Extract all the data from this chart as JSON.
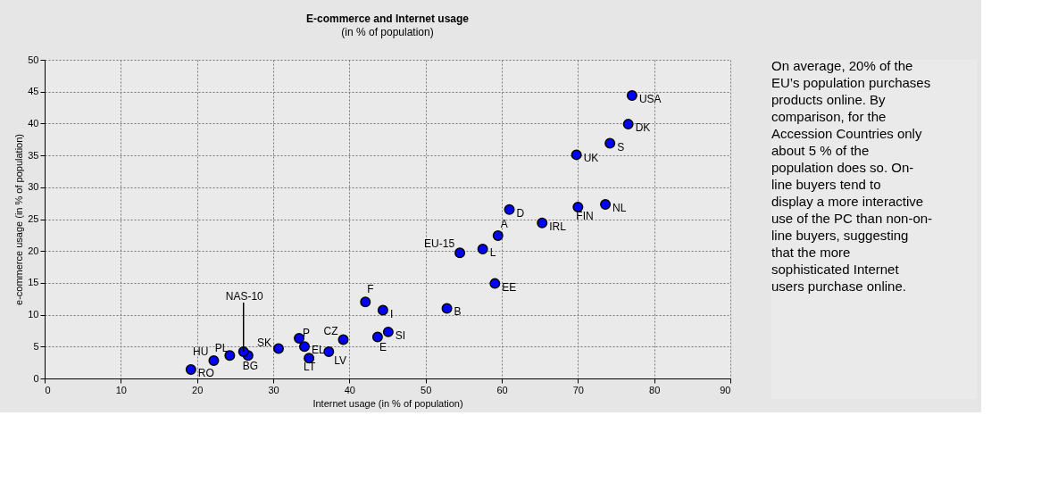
{
  "chart_data": {
    "type": "scatter",
    "title": "E-commerce and Internet usage",
    "subtitle": "(in % of population)",
    "xlabel": "Internet usage (in % of population)",
    "ylabel": "e-commerce usage (in % of population)",
    "xlim": [
      0,
      90
    ],
    "xticks": [
      0,
      10,
      20,
      30,
      40,
      50,
      60,
      70,
      80,
      90
    ],
    "ylim": [
      0,
      50
    ],
    "yticks": [
      0,
      5,
      10,
      15,
      20,
      25,
      30,
      35,
      40,
      45,
      50
    ],
    "grid": true,
    "marker": "circle",
    "legend": false,
    "series": [
      {
        "color": "#0000ff",
        "x": [
          77.1,
          76.6,
          74.2,
          69.8,
          73.6,
          70.0,
          61.0,
          65.3,
          59.5,
          57.5,
          54.5,
          59.1,
          52.8,
          42.1,
          44.4,
          45.1,
          43.7,
          39.2,
          33.4,
          34.1,
          30.7,
          34.7,
          37.3,
          26.7,
          19.2,
          22.2,
          24.3,
          26.1
        ],
        "values": [
          44.4,
          39.9,
          36.9,
          35.1,
          27.3,
          26.9,
          26.5,
          24.4,
          22.4,
          20.3,
          19.7,
          14.9,
          11.0,
          12.0,
          10.7,
          7.3,
          6.5,
          6.1,
          6.3,
          5.0,
          4.7,
          3.2,
          4.2,
          3.6,
          1.4,
          2.8,
          3.6,
          4.2
        ]
      }
    ],
    "annotations": [
      {
        "text": "USA",
        "x": 77.1,
        "y": 44.4
      },
      {
        "text": "DK",
        "x": 76.6,
        "y": 39.9
      },
      {
        "text": "S",
        "x": 74.2,
        "y": 36.9
      },
      {
        "text": "UK",
        "x": 69.8,
        "y": 35.1
      },
      {
        "text": "NL",
        "x": 73.6,
        "y": 27.3
      },
      {
        "text": "FIN",
        "x": 70.0,
        "y": 26.9
      },
      {
        "text": "D",
        "x": 61.0,
        "y": 26.5
      },
      {
        "text": "IRL",
        "x": 65.3,
        "y": 24.4
      },
      {
        "text": "A",
        "x": 59.5,
        "y": 22.4
      },
      {
        "text": "L",
        "x": 57.5,
        "y": 20.3
      },
      {
        "text": "EU-15",
        "x": 54.5,
        "y": 19.7
      },
      {
        "text": "EE",
        "x": 59.1,
        "y": 14.9
      },
      {
        "text": "B",
        "x": 52.8,
        "y": 11.0
      },
      {
        "text": "F",
        "x": 42.1,
        "y": 12.0
      },
      {
        "text": "I",
        "x": 44.4,
        "y": 10.7
      },
      {
        "text": "SI",
        "x": 45.1,
        "y": 7.3
      },
      {
        "text": "E",
        "x": 43.7,
        "y": 6.5
      },
      {
        "text": "CZ",
        "x": 39.2,
        "y": 6.1
      },
      {
        "text": "P",
        "x": 33.4,
        "y": 6.3
      },
      {
        "text": "EL",
        "x": 34.1,
        "y": 5.0
      },
      {
        "text": "SK",
        "x": 30.7,
        "y": 4.7
      },
      {
        "text": "LT",
        "x": 34.7,
        "y": 3.2
      },
      {
        "text": "LV",
        "x": 37.3,
        "y": 4.2
      },
      {
        "text": "BG",
        "x": 26.7,
        "y": 3.6
      },
      {
        "text": "RO",
        "x": 19.2,
        "y": 1.4
      },
      {
        "text": "HU",
        "x": 22.2,
        "y": 2.8
      },
      {
        "text": "PL",
        "x": 24.3,
        "y": 3.6
      },
      {
        "text": "NAS-10",
        "x": 26.1,
        "y": 4.2
      },
      "On average, 20% of the EU’s population purchases products online. By comparison, for the Accession Countries only about 5 % of the population does so. On-line buyers tend to display a more interactive use of the PC than non-on-line buyers, suggesting that the more sophisticated Internet users purchase online."
    ]
  }
}
